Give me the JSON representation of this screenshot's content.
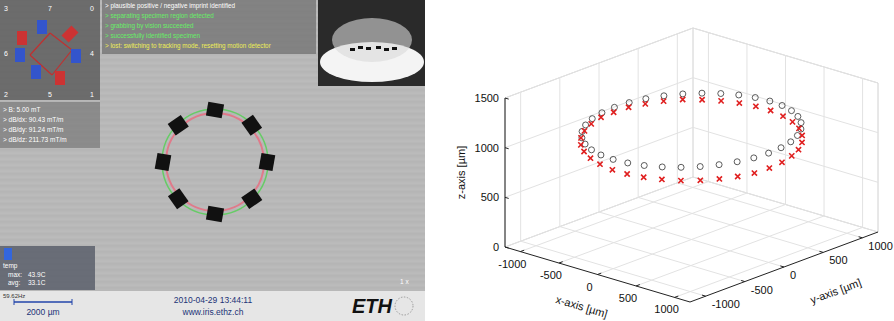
{
  "screenshot": {
    "minimap_labels": [
      "3",
      "7",
      "0",
      "6",
      "4",
      "2",
      "5",
      "1"
    ],
    "status_lines": [
      "> plausible positive / negative imprint identified",
      "> separating specimen region detected",
      "> grabbing by vision succeeded",
      "> successfully identified specimen",
      "> lost: switching to tracking mode, resetting motion detector"
    ],
    "field_readout": [
      "> B: 5.00 mT",
      "> dB/dx: 90.43 mT/m",
      "> dB/dy: 91.24 mT/m",
      "> dB/dz: 211.73 mT/m"
    ],
    "temp": {
      "title": "temp",
      "rows": [
        [
          "max:",
          "43.9C"
        ],
        [
          "avg:",
          "33.1C"
        ]
      ]
    },
    "frame_rate": "59.62Hz",
    "zoom": "1 x",
    "scale_bar": "2000 µm",
    "timestamp": "2010-04-29 13:44:11",
    "url": "www.iris.ethz.ch",
    "logo": "ETH"
  },
  "chart_data": {
    "type": "scatter3d",
    "xlabel": "x-axis [µm]",
    "ylabel": "y-axis [µm]",
    "zlabel": "z-axis [µm]",
    "xlim": [
      -1200,
      1200
    ],
    "ylim": [
      -1200,
      1200
    ],
    "zlim": [
      0,
      1500
    ],
    "xticks": [
      -1000,
      -500,
      0,
      500,
      1000
    ],
    "yticks": [
      -1000,
      -500,
      0,
      500,
      1000
    ],
    "zticks": [
      0,
      500,
      1000,
      1500
    ],
    "grid": true,
    "series": [
      {
        "color": "#333333",
        "marker": "o",
        "x": [
          1000,
          985,
          940,
          866,
          766,
          643,
          500,
          342,
          174,
          0,
          -174,
          -342,
          -500,
          -643,
          -766,
          -866,
          -940,
          -985,
          -1000,
          -985,
          -940,
          -866,
          -766,
          -643,
          -500,
          -342,
          -174,
          0,
          174,
          342,
          500,
          643,
          766,
          866,
          940,
          985
        ],
        "y": [
          0,
          174,
          342,
          500,
          643,
          766,
          866,
          940,
          985,
          1000,
          985,
          940,
          866,
          766,
          643,
          500,
          342,
          174,
          0,
          -174,
          -342,
          -500,
          -643,
          -766,
          -866,
          -940,
          -985,
          -1000,
          -985,
          -940,
          -866,
          -766,
          -643,
          -500,
          -342,
          -174
        ],
        "z": [
          1100,
          1100,
          1100,
          1100,
          1100,
          1100,
          1100,
          1100,
          1100,
          1100,
          1100,
          1100,
          1100,
          1100,
          1100,
          1100,
          1100,
          1100,
          1100,
          1100,
          1100,
          1100,
          1100,
          1100,
          1100,
          1100,
          1100,
          1100,
          1100,
          1100,
          1100,
          1100,
          1100,
          1100,
          1100,
          1100
        ]
      },
      {
        "color": "#e02020",
        "marker": "x",
        "x": [
          1010,
          995,
          950,
          875,
          774,
          649,
          505,
          345,
          176,
          0,
          -176,
          -345,
          -505,
          -649,
          -774,
          -875,
          -950,
          -995,
          -1010,
          -995,
          -950,
          -875,
          -774,
          -649,
          -505,
          -345,
          -176,
          0,
          176,
          345,
          505,
          649,
          774,
          875,
          950,
          995
        ],
        "y": [
          0,
          176,
          345,
          505,
          649,
          774,
          875,
          950,
          995,
          1010,
          995,
          950,
          875,
          774,
          649,
          505,
          345,
          176,
          0,
          -176,
          -345,
          -505,
          -649,
          -774,
          -875,
          -950,
          -995,
          -1010,
          -995,
          -950,
          -875,
          -774,
          -649,
          -505,
          -345,
          -176
        ],
        "z": [
          952,
          955,
          960,
          958,
          965,
          970,
          978,
          985,
          990,
          1002,
          1008,
          1015,
          1022,
          1030,
          1040,
          1043,
          1045,
          1050,
          1048,
          1052,
          1046,
          1040,
          1035,
          1030,
          1026,
          1018,
          1010,
          998,
          992,
          985,
          978,
          970,
          965,
          960,
          955,
          950
        ]
      }
    ]
  }
}
